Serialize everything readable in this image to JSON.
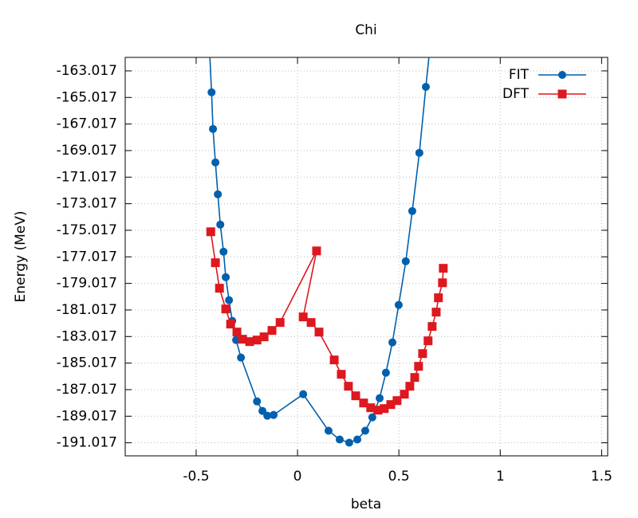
{
  "chart_data": {
    "type": "line",
    "title": "Chi",
    "xlabel": "beta",
    "ylabel": "Energy (MeV)",
    "xlim": [
      -0.85,
      1.53
    ],
    "ylim": [
      -192,
      -162
    ],
    "xticks": [
      -0.5,
      0,
      0.5,
      1,
      1.5
    ],
    "yticks": [
      -163.017,
      -165.017,
      -167.017,
      -169.017,
      -171.017,
      -173.017,
      -175.017,
      -177.017,
      -179.017,
      -181.017,
      -183.017,
      -185.017,
      -187.017,
      -189.017,
      -191.017
    ],
    "grid": true,
    "legend": "top-right",
    "series": [
      {
        "name": "FIT",
        "color": "#0060ad",
        "marker": "circle",
        "x": [
          -0.437,
          -0.424,
          -0.417,
          -0.405,
          -0.393,
          -0.381,
          -0.365,
          -0.354,
          -0.338,
          -0.322,
          -0.303,
          -0.279,
          -0.2,
          -0.173,
          -0.149,
          -0.118,
          0.028,
          0.153,
          0.208,
          0.255,
          0.295,
          0.334,
          0.369,
          0.405,
          0.436,
          0.468,
          0.499,
          0.534,
          0.566,
          0.601,
          0.633,
          0.665
        ],
        "values": [
          -160.5,
          -164.63,
          -167.39,
          -169.91,
          -172.31,
          -174.59,
          -176.63,
          -178.55,
          -180.28,
          -181.84,
          -183.28,
          -184.6,
          -187.9,
          -188.62,
          -188.98,
          -188.92,
          -187.36,
          -190.11,
          -190.77,
          -191.01,
          -190.77,
          -190.11,
          -189.1,
          -187.66,
          -185.74,
          -183.46,
          -180.64,
          -177.35,
          -173.57,
          -169.19,
          -164.22,
          -159.5
        ]
      },
      {
        "name": "DFT",
        "color": "#dd181f",
        "marker": "square",
        "x": [
          -0.428,
          -0.405,
          -0.385,
          -0.354,
          -0.33,
          -0.299,
          -0.271,
          -0.236,
          -0.2,
          -0.165,
          -0.126,
          -0.086,
          0.094,
          0.028,
          0.067,
          0.106,
          0.181,
          0.216,
          0.251,
          0.287,
          0.326,
          0.361,
          0.397,
          0.428,
          0.46,
          0.491,
          0.527,
          0.554,
          0.578,
          0.597,
          0.617,
          0.644,
          0.664,
          0.684,
          0.695,
          0.715,
          0.719
        ],
        "values": [
          -175.13,
          -177.46,
          -179.38,
          -180.94,
          -182.08,
          -182.68,
          -183.22,
          -183.4,
          -183.28,
          -183.04,
          -182.56,
          -181.96,
          -176.57,
          -181.54,
          -181.96,
          -182.68,
          -184.78,
          -185.86,
          -186.76,
          -187.48,
          -188.02,
          -188.38,
          -188.56,
          -188.44,
          -188.14,
          -187.84,
          -187.36,
          -186.76,
          -186.1,
          -185.26,
          -184.3,
          -183.34,
          -182.26,
          -181.18,
          -180.1,
          -178.97,
          -177.88
        ]
      }
    ]
  }
}
